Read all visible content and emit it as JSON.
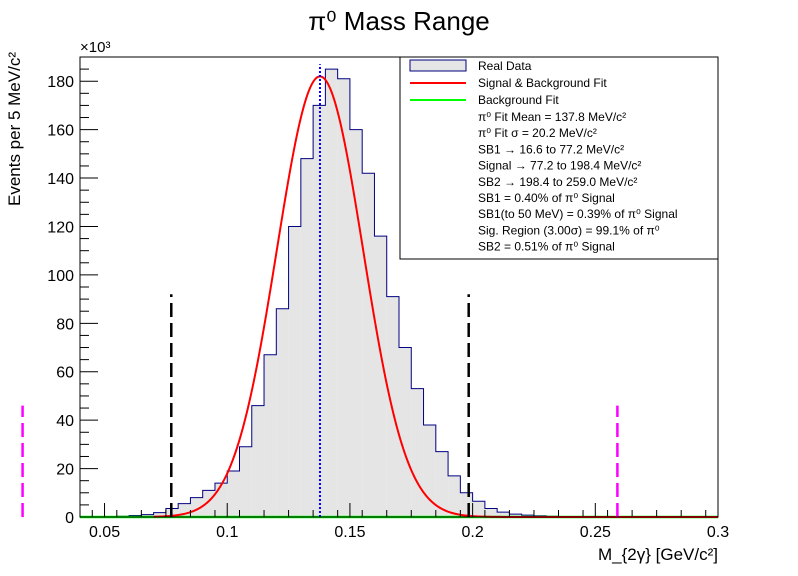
{
  "chart_data": {
    "type": "histogram",
    "title": "π⁰ Mass Range",
    "xlabel": "M_{2γ} [GeV/c²]",
    "ylabel": "Events per 5 MeV/c²",
    "y_multiplier": "×10³",
    "xlim": [
      0.04,
      0.3
    ],
    "ylim": [
      0,
      190
    ],
    "x_ticks": [
      "0.05",
      "0.1",
      "0.15",
      "0.2",
      "0.25",
      "0.3"
    ],
    "y_ticks": [
      "0",
      "20",
      "40",
      "60",
      "80",
      "100",
      "120",
      "140",
      "160",
      "180"
    ],
    "bin_width": 0.005,
    "bins": {
      "x_low": [
        0.045,
        0.05,
        0.055,
        0.06,
        0.065,
        0.07,
        0.075,
        0.08,
        0.085,
        0.09,
        0.095,
        0.1,
        0.105,
        0.11,
        0.115,
        0.12,
        0.125,
        0.13,
        0.135,
        0.14,
        0.145,
        0.15,
        0.155,
        0.16,
        0.165,
        0.17,
        0.175,
        0.18,
        0.185,
        0.19,
        0.195,
        0.2,
        0.205,
        0.21,
        0.215,
        0.22,
        0.225,
        0.23,
        0.235,
        0.24,
        0.245,
        0.25,
        0.255,
        0.26,
        0.265,
        0.27,
        0.275,
        0.28,
        0.285,
        0.29,
        0.295
      ],
      "values": [
        0.1,
        0.2,
        0.3,
        0.6,
        1.0,
        1.8,
        3.5,
        5.5,
        8.0,
        11.0,
        14.0,
        19.0,
        29.0,
        46.0,
        67.0,
        86.0,
        120.0,
        148.0,
        170.0,
        185.0,
        181.0,
        160.0,
        142.0,
        116.0,
        91.0,
        70.0,
        53.0,
        38.0,
        27.0,
        17.0,
        10.0,
        6.5,
        3.5,
        2.0,
        1.2,
        0.8,
        0.5,
        0.3,
        0.2,
        0.15,
        0.1,
        0.08,
        0.05,
        0.03,
        0.02,
        0.01,
        0.01,
        0.0,
        0.0,
        0.0,
        0.0
      ]
    },
    "fit": {
      "mean": 0.1378,
      "sigma": 0.0202,
      "amplitude": 182.0,
      "background_level": 0.0
    },
    "mean_line_x": 0.1378,
    "sideband_lines": [
      {
        "name": "sb1-upper-boundary",
        "x": 0.0772,
        "y_top": 92,
        "color": "#000000"
      },
      {
        "name": "sb2-lower-boundary",
        "x": 0.1984,
        "y_top": 92,
        "color": "#000000"
      },
      {
        "name": "sb2-upper-boundary",
        "x": 0.259,
        "y_top": 46,
        "color": "#ff00ff"
      },
      {
        "name": "sb1-lower-boundary",
        "x": 0.0166,
        "y_top": 46,
        "color": "#ff00ff"
      }
    ],
    "colors": {
      "hist_fill": "#e5e5e5",
      "hist_line": "#000080",
      "fit": "#ff0000",
      "background": "#00ff00",
      "mean_line": "#0000ff"
    },
    "legend": {
      "position": "top-right",
      "entries": [
        {
          "label": "Real Data",
          "kind": "box"
        },
        {
          "label": "Signal & Background Fit",
          "kind": "line",
          "color": "#ff0000"
        },
        {
          "label": "Background Fit",
          "kind": "line",
          "color": "#00ff00"
        }
      ],
      "info_lines": [
        "π⁰ Fit Mean = 137.8 MeV/c²",
        "π⁰ Fit σ = 20.2 MeV/c²",
        "SB1 → 16.6 to 77.2 MeV/c²",
        "Signal → 77.2 to 198.4 MeV/c²",
        "SB2 → 198.4 to 259.0 MeV/c²",
        "SB1 = 0.40% of π⁰ Signal",
        "SB1(to 50 MeV) = 0.39% of π⁰ Signal",
        "Sig. Region (3.00σ) = 99.1% of π⁰",
        "SB2 = 0.51% of π⁰ Signal"
      ]
    }
  }
}
